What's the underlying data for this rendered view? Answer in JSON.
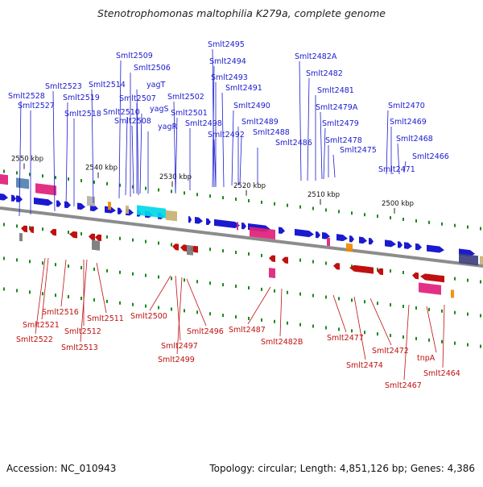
{
  "title": "Stenotrophomonas maltophilia K279a, complete genome",
  "footer": {
    "accession": "Accession: NC_010943",
    "summary": "Topology: circular; Length: 4,851,126 bp; Genes: 4,386"
  },
  "colors": {
    "backbone": "#8c8c8c",
    "forward_strand": "#1a1ad0",
    "reverse_strand": "#c01010",
    "tick": "#1a8a1a",
    "rna": "#e0207a",
    "highlight": "#00d8e8",
    "gray_gene": "#777777",
    "orange_gene": "#f08a00",
    "tan_gene": "#c8b070",
    "navy_gene": "#404080"
  },
  "scale_labels": [
    "2550 kbp",
    "2540 kbp",
    "2530 kbp",
    "2520 kbp",
    "2510 kbp",
    "2500 kbp"
  ],
  "top_labels": [
    "Smlt2528",
    "Smlt2527",
    "Smlt2523",
    "Smlt2519",
    "Smlt2518",
    "Smlt2514",
    "Smlt2509",
    "Smlt2506",
    "yagT",
    "Smlt2510",
    "Smlt2507",
    "Smlt2508",
    "yagS",
    "yagR",
    "Smlt2502",
    "Smlt2501",
    "Smlt2498",
    "Smlt2495",
    "Smlt2494",
    "Smlt2493",
    "Smlt2491",
    "Smlt2490",
    "Smlt2489",
    "Smlt2492",
    "Smlt2488",
    "Smlt2486",
    "Smlt2482A",
    "Smlt2482",
    "Smlt2481",
    "Smlt2479A",
    "Smlt2479",
    "Smlt2478",
    "Smlt2475",
    "Smlt2470",
    "Smlt2469",
    "Smlt2468",
    "Smlt2466",
    "Smlt2471"
  ],
  "bottom_labels": [
    "Smlt2516",
    "Smlt2521",
    "Smlt2522",
    "Smlt2512",
    "Smlt2513",
    "Smlt2511",
    "Smlt2500",
    "Smlt2497",
    "Smlt2499",
    "Smlt2496",
    "Smlt2487",
    "Smlt2482B",
    "Smlt2477",
    "Smlt2474",
    "Smlt2472",
    "tnpA",
    "Smlt2467",
    "Smlt2464"
  ]
}
